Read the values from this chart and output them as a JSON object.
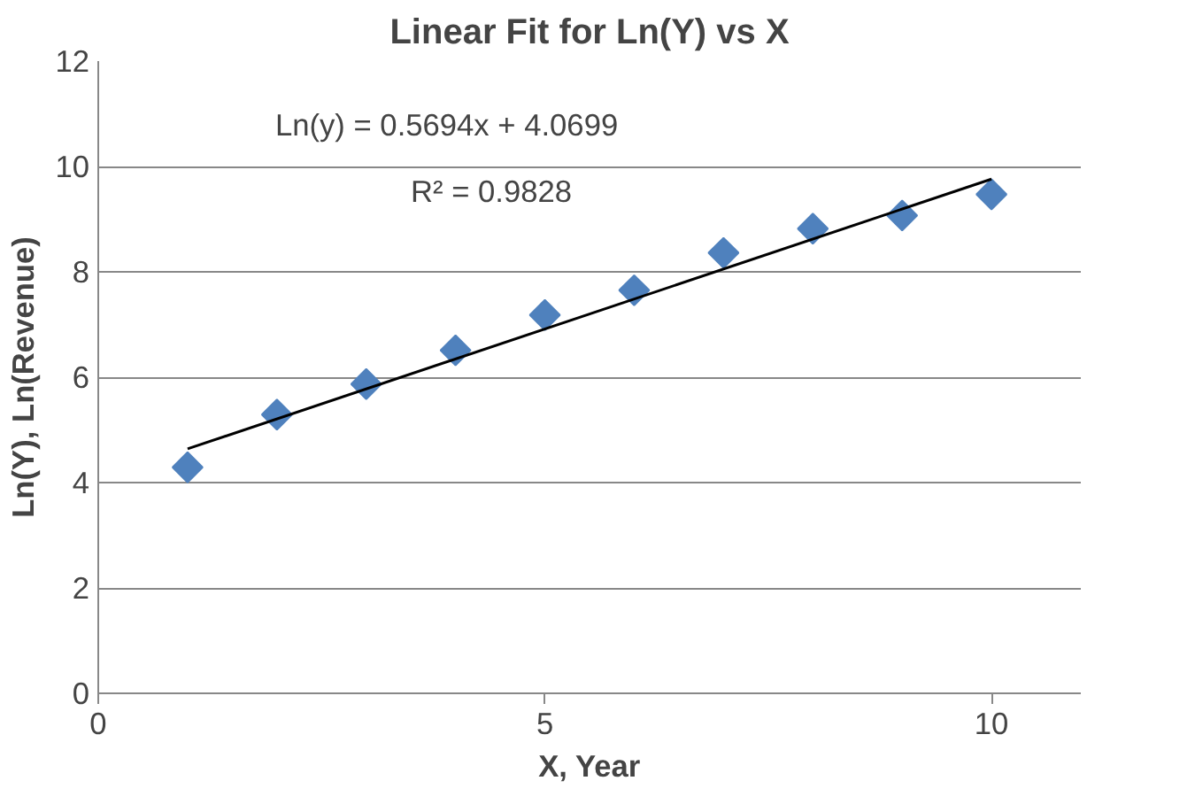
{
  "chart_data": {
    "type": "scatter",
    "title": "Linear Fit for Ln(Y) vs X",
    "xlabel": "X, Year",
    "ylabel": "Ln(Y), Ln(Revenue)",
    "x": [
      1,
      2,
      3,
      4,
      5,
      6,
      7,
      8,
      9,
      10
    ],
    "series": [
      {
        "color": "#4f81bd",
        "marker": "diamond",
        "values": [
          4.29,
          5.29,
          5.87,
          6.51,
          7.18,
          7.65,
          8.36,
          8.82,
          9.07,
          9.47
        ]
      },
      {
        "type": "line",
        "color": "#000000",
        "x": [
          1,
          10
        ],
        "values": [
          4.64,
          9.76
        ]
      }
    ],
    "annotations": [
      "Ln(y) = 0.5694x + 4.0699",
      "R² = 0.9828"
    ],
    "xlim": [
      0,
      11
    ],
    "xticks": [
      0,
      5,
      10
    ],
    "ylim": [
      0,
      12
    ],
    "yticks": [
      0,
      2,
      4,
      6,
      8,
      10,
      12
    ],
    "grid": "y"
  }
}
